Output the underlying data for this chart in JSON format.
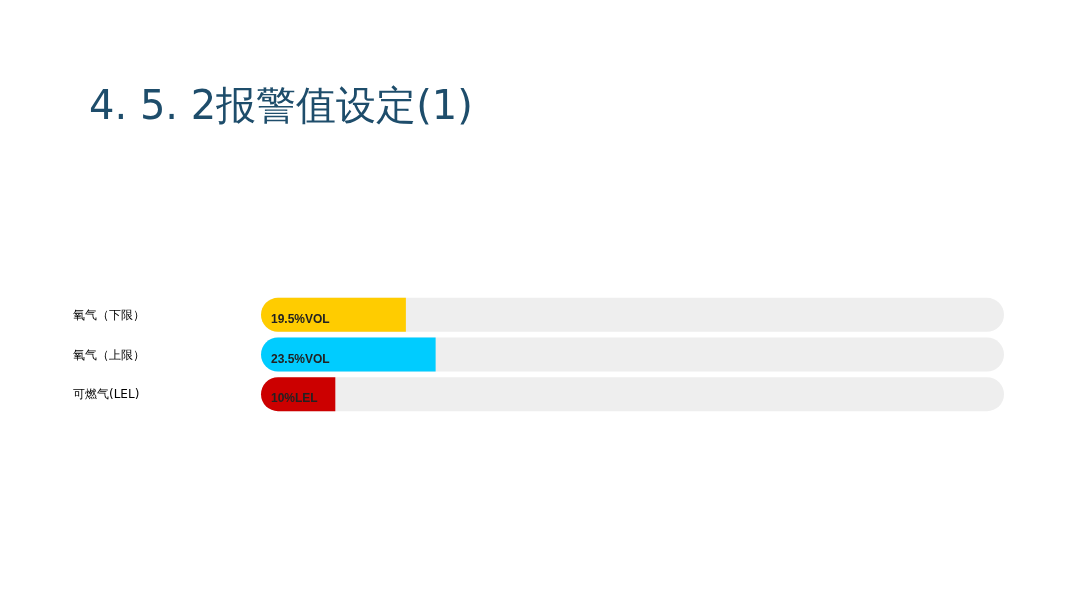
{
  "chart_data": {
    "type": "bar",
    "orientation": "horizontal",
    "title": "4. 5. 2报警值设定(1)",
    "categories": [
      "氧气（下限）",
      "氧气（上限）",
      "可燃气(LEL)"
    ],
    "values": [
      19.5,
      23.5,
      10
    ],
    "colors": [
      "#ffcc00",
      "#00ccff",
      "#cc0000"
    ],
    "value_labels": [
      "19.5%VOL",
      "23.5%VOL",
      "10%LEL"
    ],
    "xlim": [
      0,
      100
    ],
    "tick_labels": "y"
  }
}
